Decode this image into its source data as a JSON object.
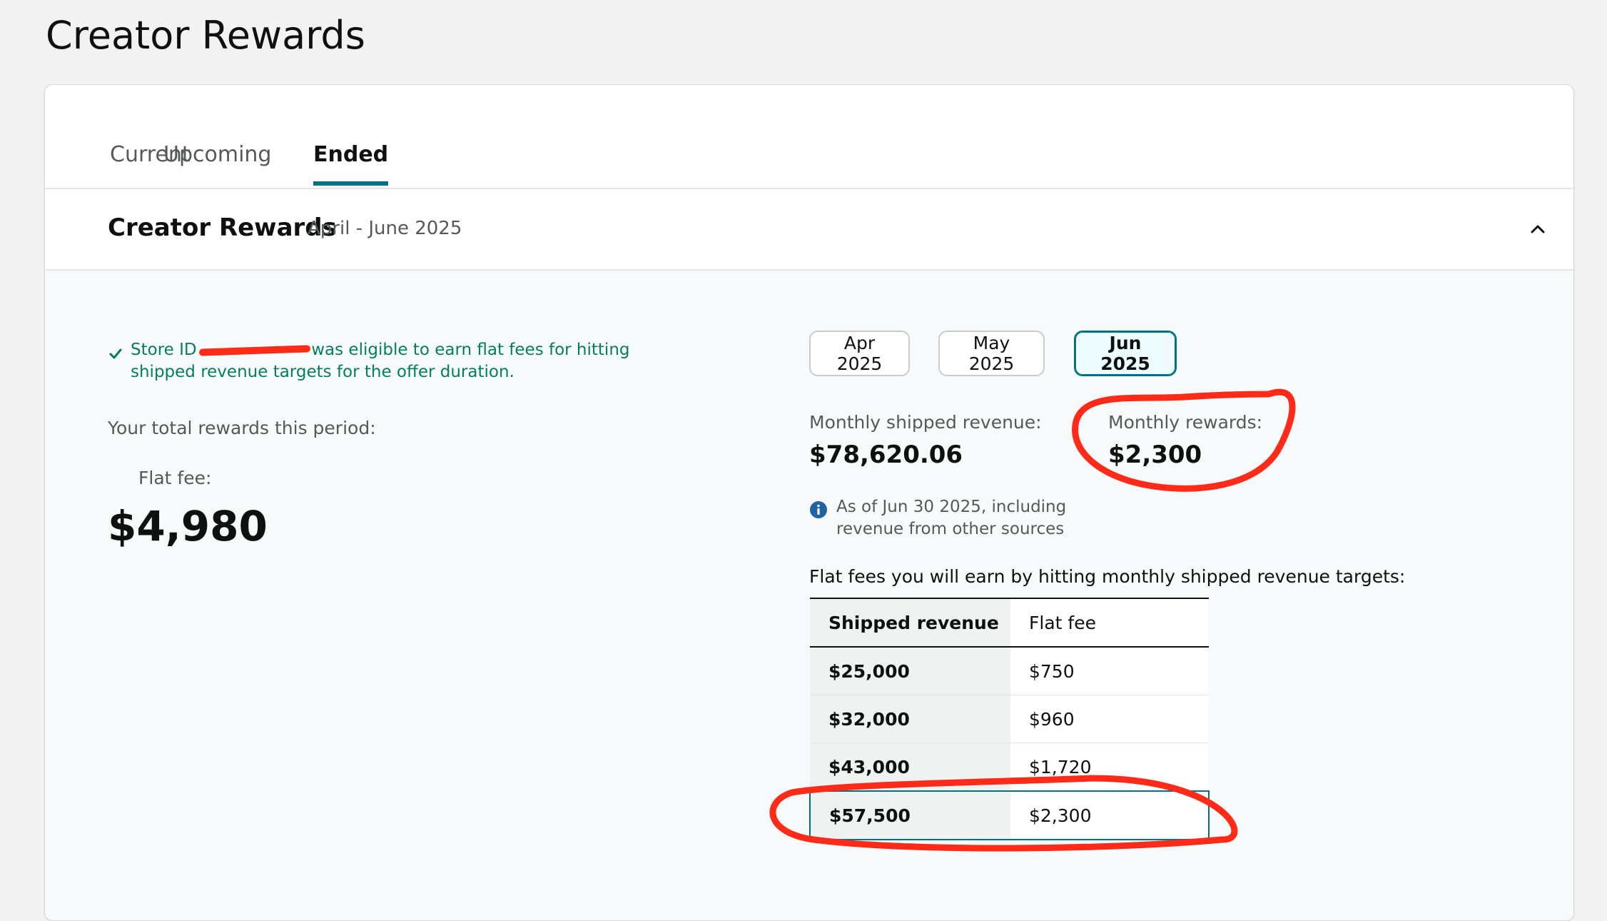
{
  "page": {
    "title": "Creator Rewards"
  },
  "tabs": [
    {
      "label": "Current",
      "active": false
    },
    {
      "label": "Upcoming",
      "active": false
    },
    {
      "label": "Ended",
      "active": true
    }
  ],
  "section": {
    "title": "Creator Rewards",
    "period": "April - June 2025"
  },
  "eligibility": {
    "prefix": "Store ID",
    "suffix": "was eligible to earn flat fees for hitting shipped revenue targets for the offer duration."
  },
  "totals": {
    "label": "Your total rewards this period:",
    "flat_fee_label": "Flat fee:",
    "flat_fee_value": "$4,980"
  },
  "months": [
    {
      "label": "Apr 2025",
      "selected": false
    },
    {
      "label": "May 2025",
      "selected": false
    },
    {
      "label": "Jun 2025",
      "selected": true
    }
  ],
  "monthly": {
    "shipped_revenue_label": "Monthly shipped revenue:",
    "shipped_revenue_value": "$78,620.06",
    "rewards_label": "Monthly rewards:",
    "rewards_value": "$2,300",
    "note": "As of Jun 30 2025, including revenue from other sources"
  },
  "targets": {
    "heading": "Flat fees you will earn by hitting monthly shipped revenue targets:",
    "columns": [
      "Shipped revenue",
      "Flat fee"
    ],
    "rows": [
      {
        "revenue": "$25,000",
        "fee": "$750"
      },
      {
        "revenue": "$32,000",
        "fee": "$960"
      },
      {
        "revenue": "$43,000",
        "fee": "$1,720"
      },
      {
        "revenue": "$57,500",
        "fee": "$2,300"
      }
    ],
    "highlighted_row": 3
  },
  "colors": {
    "accent": "#007185",
    "success": "#067d62",
    "annotation": "#ff2a18",
    "info": "#2162a1"
  },
  "icons": {
    "check": "check-icon",
    "info": "info-icon",
    "collapse": "chevron-up-icon"
  }
}
